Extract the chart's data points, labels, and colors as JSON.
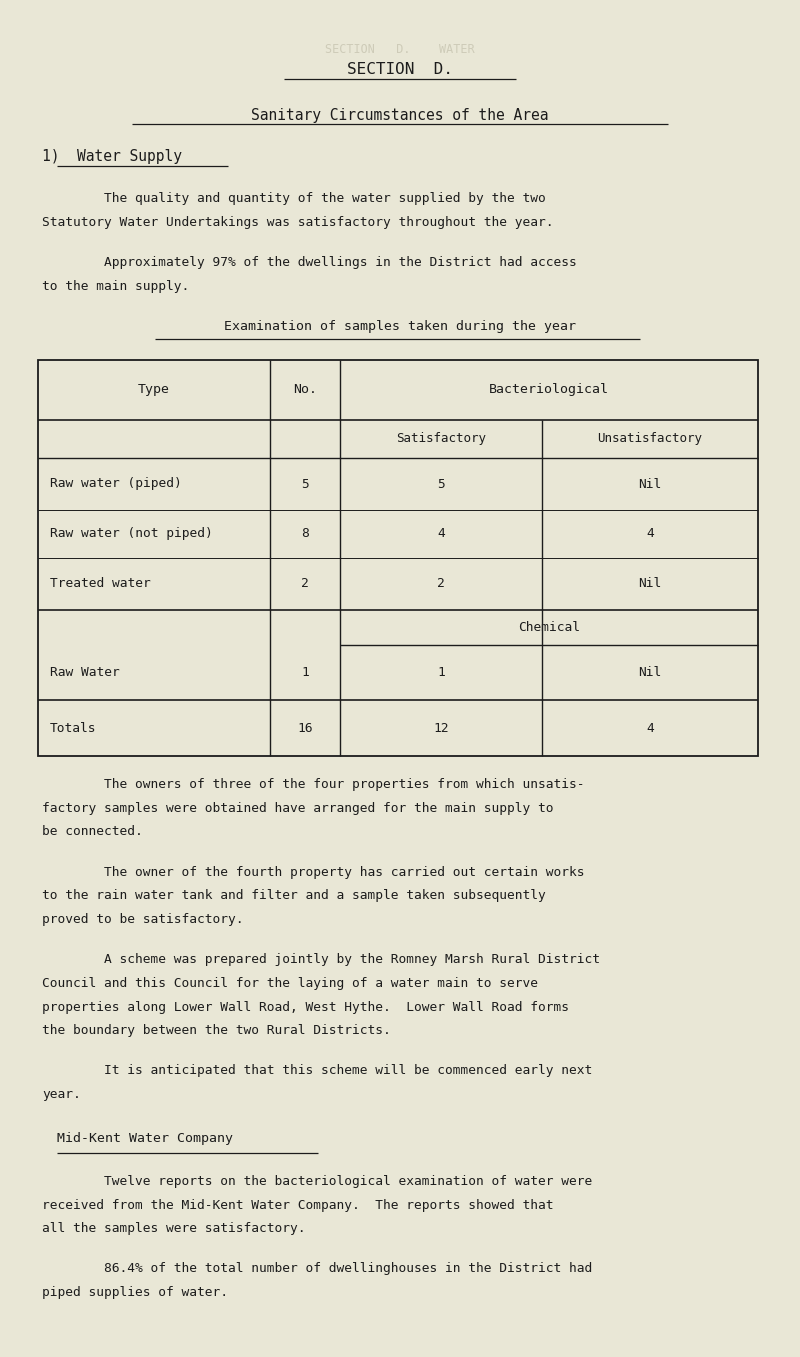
{
  "bg_color": "#e9e7d6",
  "text_color": "#1c1c1c",
  "page_width": 8.0,
  "page_height": 13.57,
  "dpi": 100,
  "faded_text": "SECTION   D.    WATER",
  "title1": "SECTION  D.",
  "title2": "Sanitary Circumstances of the Area",
  "section_heading": "1)  Water Supply",
  "p1_lines": [
    "        The quality and quantity of the water supplied by the two",
    "Statutory Water Undertakings was satisfactory throughout the year."
  ],
  "p2_lines": [
    "        Approximately 97% of the dwellings in the District had access",
    "to the main supply."
  ],
  "table_title": "Examination of samples taken during the year",
  "table_rows": [
    [
      "Raw water (piped)",
      "5",
      "5",
      "Nil"
    ],
    [
      "Raw water (not piped)",
      "8",
      "4",
      "4"
    ],
    [
      "Treated water",
      "2",
      "2",
      "Nil"
    ]
  ],
  "chem_row": [
    "Raw Water",
    "1",
    "1",
    "Nil"
  ],
  "totals_row": [
    "Totals",
    "16",
    "12",
    "4"
  ],
  "p3_lines": [
    "        The owners of three of the four properties from which unsatis-",
    "factory samples were obtained have arranged for the main supply to",
    "be connected."
  ],
  "p4_lines": [
    "        The owner of the fourth property has carried out certain works",
    "to the rain water tank and filter and a sample taken subsequently",
    "proved to be satisfaсtory."
  ],
  "p5_lines": [
    "        A scheme was prepared jointly by the Romney Marsh Rural District",
    "Council and this Council for the laying of a water main to serve",
    "properties along Lower Wall Road, West Hythe.  Lower Wall Road forms",
    "the boundary between the two Rural Districts."
  ],
  "p6_lines": [
    "        It is anticipated that this scheme will be commenced early next",
    "year."
  ],
  "subheading2": "Mid-Kent Water Company",
  "p7_lines": [
    "        Twelve reports on the bacteriological examination of water were",
    "received from the Mid-Kent Water Company.  The reports showed that",
    "all the samples were satisfactory."
  ],
  "p8_lines": [
    "        86.4% of the total number of dwellinghouses in the District had",
    "piped supplies of water."
  ]
}
